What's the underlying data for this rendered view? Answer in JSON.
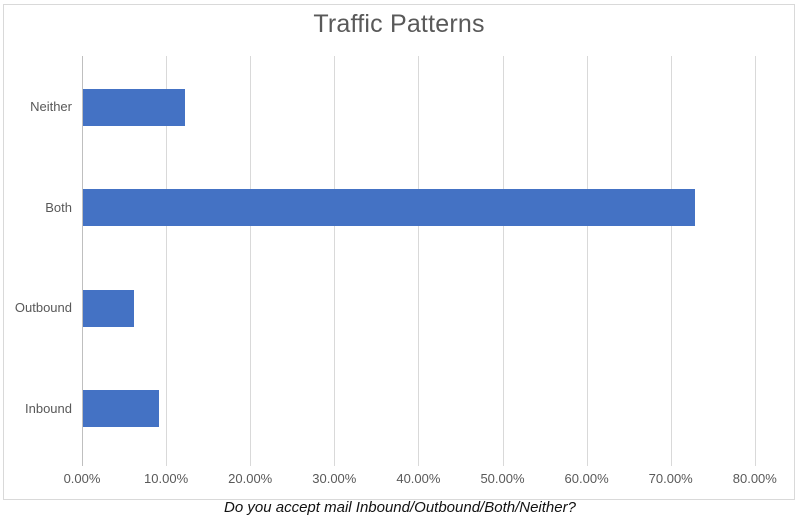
{
  "chart_data": {
    "type": "bar",
    "orientation": "horizontal",
    "title": "Traffic Patterns",
    "caption": "Do you accept mail Inbound/Outbound/Both/Neither?",
    "categories": [
      "Neither",
      "Both",
      "Outbound",
      "Inbound"
    ],
    "values": [
      12.12,
      72.73,
      6.06,
      9.09
    ],
    "value_unit": "percent",
    "xlabel": "",
    "ylabel": "",
    "xlim": [
      0,
      80
    ],
    "x_tick_step": 10,
    "x_tick_labels": [
      "0.00%",
      "10.00%",
      "20.00%",
      "30.00%",
      "40.00%",
      "50.00%",
      "60.00%",
      "70.00%",
      "80.00%"
    ],
    "grid": true,
    "legend": false,
    "colors": {
      "bar": "#4472C4",
      "title_text": "#595959",
      "axis_text": "#595959",
      "gridline": "#D9D9D9",
      "axis_line": "#BFBFBF",
      "chart_border": "#D9D9D9",
      "caption_text": "#111111"
    }
  }
}
